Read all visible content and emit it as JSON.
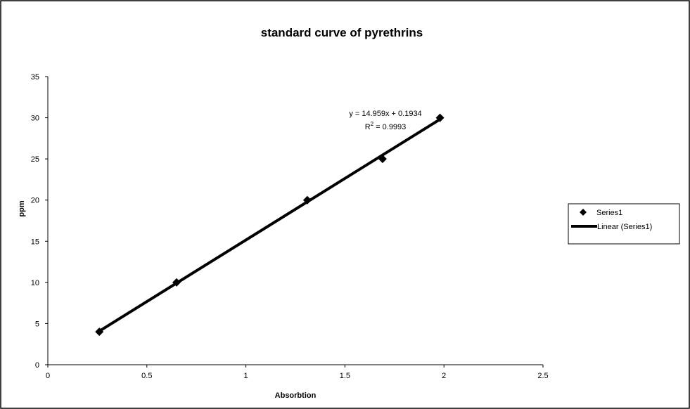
{
  "chart_data": {
    "type": "scatter",
    "title": "standard curve of pyrethrins",
    "xlabel": "Absorbtion",
    "ylabel": "ppm",
    "xlim": [
      0,
      2.5
    ],
    "ylim": [
      0,
      35
    ],
    "x_ticks": [
      "0",
      "0.5",
      "1",
      "1.5",
      "2",
      "2.5"
    ],
    "y_ticks": [
      "0",
      "5",
      "10",
      "15",
      "20",
      "25",
      "30",
      "35"
    ],
    "grid": false,
    "legend_position": "right",
    "series": [
      {
        "name": "Series1",
        "marker": "diamond",
        "color": "#000000",
        "x": [
          0.26,
          0.65,
          1.31,
          1.69,
          1.98
        ],
        "y": [
          4,
          10,
          20,
          25,
          30
        ]
      }
    ],
    "trendline": {
      "name": "Linear (Series1)",
      "slope": 14.959,
      "intercept": 0.1934,
      "x_range": [
        0.26,
        1.98
      ],
      "color": "#000000"
    },
    "annotations": {
      "equation": "y = 14.959x + 0.1934",
      "r2_prefix": "R",
      "r2_exponent": "2",
      "r2_value": " = 0.9993"
    }
  }
}
